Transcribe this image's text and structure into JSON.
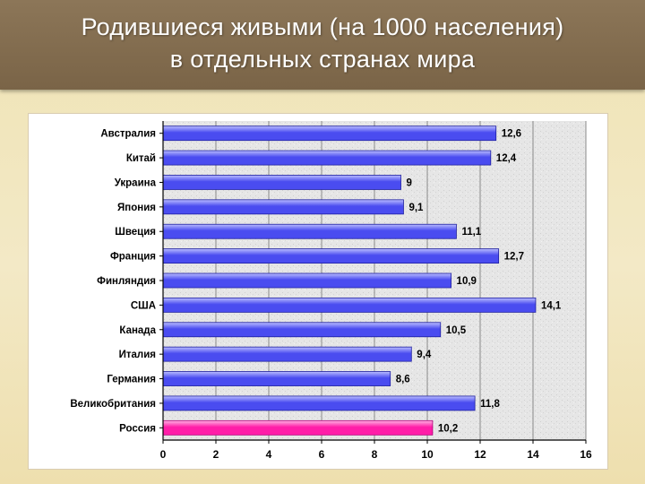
{
  "title": {
    "line1": "Родившиеся живыми (на 1000 населения)",
    "line2": "в отдельных странах мира"
  },
  "chart_data": {
    "type": "bar",
    "orientation": "horizontal",
    "categories": [
      "Австралия",
      "Китай",
      "Украина",
      "Япония",
      "Швеция",
      "Франция",
      "Финляндия",
      "США",
      "Канада",
      "Италия",
      "Германия",
      "Великобритания",
      "Россия"
    ],
    "values": [
      12.6,
      12.4,
      9,
      9.1,
      11.1,
      12.7,
      10.9,
      14.1,
      10.5,
      9.4,
      8.6,
      11.8,
      10.2
    ],
    "value_labels": [
      "12,6",
      "12,4",
      "9",
      "9,1",
      "11,1",
      "12,7",
      "10,9",
      "14,1",
      "10,5",
      "9,4",
      "8,6",
      "11,8",
      "10,2"
    ],
    "highlight_category": "Россия",
    "xlim": [
      0,
      16
    ],
    "xticks": [
      0,
      2,
      4,
      6,
      8,
      10,
      12,
      14,
      16
    ],
    "grid": true,
    "colors": {
      "bar": "#4a4cf0",
      "bar_light": "#b9bcff",
      "highlight": "#ff1ea8",
      "highlight_light": "#ffb3e3",
      "highlight_label": "#e0002a",
      "plot_bg": "#e4e4e4"
    }
  }
}
